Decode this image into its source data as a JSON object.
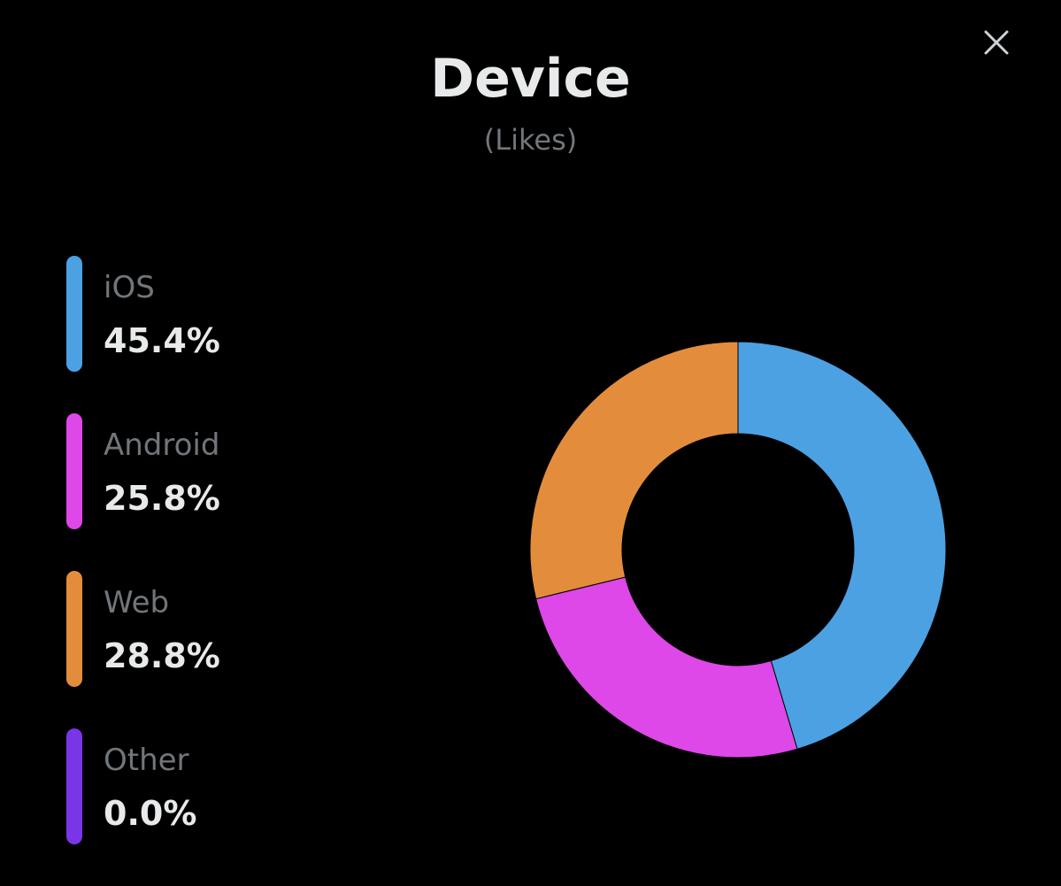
{
  "header": {
    "title": "Device",
    "subtitle": "(Likes)",
    "close_icon": "close-icon"
  },
  "chart_data": {
    "type": "pie",
    "variant": "donut",
    "title": "Device",
    "subtitle": "(Likes)",
    "legend_position": "left",
    "categories": [
      "iOS",
      "Android",
      "Web",
      "Other"
    ],
    "values": [
      45.4,
      25.8,
      28.8,
      0.0
    ],
    "value_labels": [
      "45.4%",
      "25.8%",
      "28.8%",
      "0.0%"
    ],
    "colors": [
      "#4ca1e3",
      "#de47e8",
      "#e38d3c",
      "#7b35e8"
    ],
    "start": "top",
    "direction": "clockwise"
  },
  "colors": {
    "background": "#000000",
    "title_text": "#e7e9ea",
    "secondary_text": "#71767b"
  }
}
